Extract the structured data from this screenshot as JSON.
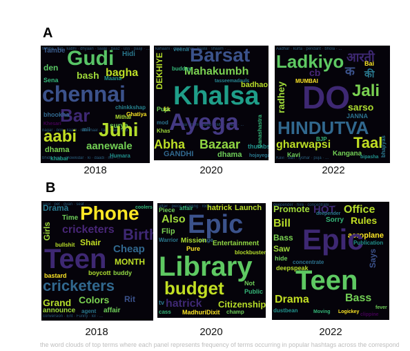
{
  "panels": {
    "a": {
      "label": "A",
      "clouds": [
        {
          "year": "2018",
          "words": [
            "Gudi",
            "chennai",
            "Bar",
            "Juhi",
            "aabi",
            "aanewale",
            "bagha",
            "bash",
            "den",
            "dhama",
            "Sena",
            "Tambe",
            "Hidi",
            "Maana",
            "Mithai",
            "Ghatiya",
            "surya",
            "khabar",
            "Humara",
            "mii",
            "Khesari",
            "bhookha",
            "chinkkshap"
          ]
        },
        {
          "year": "2020",
          "words": [
            "Barsat",
            "Abha",
            "Ayega",
            "Mahakumbh",
            "DEKHIYE",
            "Khalsa",
            "Bazaar",
            "badhao",
            "dhama",
            "hojayega",
            "budday",
            "GANDHI",
            "Puja",
            "veena",
            "thumbs",
            "kk",
            "Khas",
            "Ganashastra",
            "mod",
            "tasseemadauls"
          ]
        },
        {
          "year": "2022",
          "words": [
            "Ladkiyo",
            "DO",
            "HINDUTVA",
            "Jali",
            "gharwapsi",
            "Taal",
            "radhey",
            "sarso",
            "Kangana",
            "Kavi",
            "MUMBAI",
            "Bai",
            "JANNA",
            "bhajiyas",
            "cb",
            "आरती",
            "की",
            "क",
            "BJP",
            "bipasha"
          ]
        }
      ]
    },
    "b": {
      "label": "B",
      "clouds": [
        {
          "year": "2018",
          "words": [
            "Phone",
            "Teen",
            "cricketers",
            "Birthday",
            "Ad",
            "Drama",
            "Girls",
            "Shair",
            "Cheap",
            "MONTH",
            "Colors",
            "Grand",
            "Rit",
            "announce",
            "affair",
            "agent",
            "boycott",
            "buddy",
            "bullshit",
            "bastard",
            "Time",
            "conversion",
            "Ent",
            "Funny",
            "coolers"
          ]
        },
        {
          "year": "2020",
          "words": [
            "Epic",
            "Library",
            "budget",
            "Also",
            "hatrick",
            "Citizenship",
            "Entertainment",
            "Launch",
            "Piece",
            "Flip",
            "Mission",
            "Pure",
            "MadhuriDixit",
            "Not",
            "Public",
            "blockbuster",
            "affair",
            "stage",
            "champ",
            "Warrior",
            "cass",
            "cooling",
            "rocks",
            "tv"
          ]
        },
        {
          "year": "2022",
          "words": [
            "Epic",
            "Teen",
            "Drama",
            "Bass",
            "Office",
            "Rules",
            "Bill",
            "Promote",
            "HOT",
            "Saw",
            "aeroplane",
            "Sorry",
            "hide",
            "deepspeak",
            "dustbean",
            "Says",
            "Publication",
            "concentrate",
            "deepender",
            "hire",
            "Moving",
            "fever",
            "PREM",
            "Logickey",
            "clippine"
          ]
        }
      ]
    }
  },
  "footer": "the word clouds of top terms where each panel represents frequency of terms occurring in popular hashtags across the corresponding years"
}
